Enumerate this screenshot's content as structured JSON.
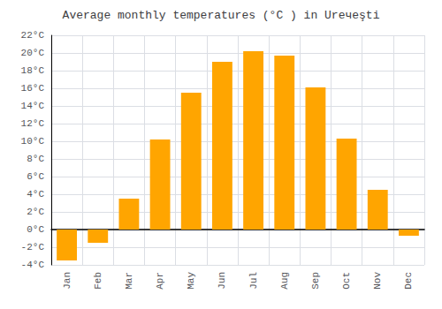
{
  "chart_data": {
    "type": "bar",
    "title": "Average monthly temperatures (°C ) in Urечеşti",
    "categories": [
      "Jan",
      "Feb",
      "Mar",
      "Apr",
      "May",
      "Jun",
      "Jul",
      "Aug",
      "Sep",
      "Oct",
      "Nov",
      "Dec"
    ],
    "values": [
      -3.5,
      -1.5,
      3.5,
      10.2,
      15.5,
      19.0,
      20.2,
      19.7,
      16.1,
      10.3,
      4.5,
      -0.7
    ],
    "color": "#FFA500",
    "ylim": [
      -4,
      22
    ],
    "yticks": [
      {
        "value": -4,
        "label": "-4°C"
      },
      {
        "value": -2,
        "label": "-2°C"
      },
      {
        "value": 0,
        "label": "0°C"
      },
      {
        "value": 2,
        "label": "2°C"
      },
      {
        "value": 4,
        "label": "4°C"
      },
      {
        "value": 6,
        "label": "6°C"
      },
      {
        "value": 8,
        "label": "8°C"
      },
      {
        "value": 10,
        "label": "10°C"
      },
      {
        "value": 12,
        "label": "12°C"
      },
      {
        "value": 14,
        "label": "14°C"
      },
      {
        "value": 16,
        "label": "16°C"
      },
      {
        "value": 18,
        "label": "18°C"
      },
      {
        "value": 20,
        "label": "20°C"
      },
      {
        "value": 22,
        "label": "22°C"
      }
    ],
    "grid": true
  }
}
